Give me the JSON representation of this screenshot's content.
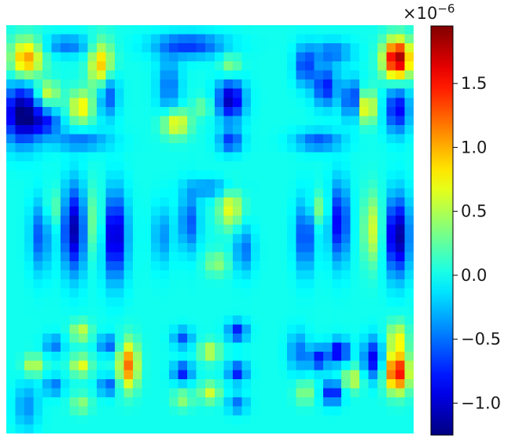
{
  "chart_data": {
    "type": "heatmap",
    "title": "",
    "xlabel": "",
    "ylabel": "",
    "colormap": "jet",
    "colorbar": {
      "scale_prefix": "×10",
      "scale_exponent": "−6",
      "vmin": -1.25,
      "vmax": 1.95,
      "ticks": [
        {
          "value": 1.5,
          "label": "1.5"
        },
        {
          "value": 1.0,
          "label": "1.0"
        },
        {
          "value": 0.5,
          "label": "0.5"
        },
        {
          "value": 0.0,
          "label": "0.0"
        },
        {
          "value": -0.5,
          "label": "−0.5"
        },
        {
          "value": -1.0,
          "label": "−1.0"
        }
      ]
    },
    "grid": {
      "rows": 3,
      "cols": 3
    },
    "background_value": 0.0,
    "panels": [
      {
        "row": 0,
        "col": 0,
        "blobs": [
          {
            "u": 0.15,
            "v": 0.25,
            "a": 1.1,
            "su": 0.08,
            "sv": 0.1
          },
          {
            "u": 0.7,
            "v": 0.3,
            "a": 1.0,
            "su": 0.06,
            "sv": 0.12
          },
          {
            "u": 0.3,
            "v": 0.5,
            "a": 0.7,
            "su": 0.06,
            "sv": 0.06
          },
          {
            "u": 0.12,
            "v": 0.65,
            "a": -1.3,
            "su": 0.1,
            "sv": 0.15
          },
          {
            "u": 0.3,
            "v": 0.72,
            "a": -0.6,
            "su": 0.08,
            "sv": 0.06
          },
          {
            "u": 0.55,
            "v": 0.6,
            "a": 0.8,
            "su": 0.06,
            "sv": 0.08
          },
          {
            "u": 0.75,
            "v": 0.5,
            "a": -0.7,
            "su": 0.05,
            "sv": 0.12
          },
          {
            "u": 0.45,
            "v": 0.15,
            "a": -0.5,
            "su": 0.12,
            "sv": 0.05
          },
          {
            "u": 0.55,
            "v": 0.85,
            "a": -0.5,
            "su": 0.15,
            "sv": 0.05
          }
        ]
      },
      {
        "row": 0,
        "col": 1,
        "blobs": [
          {
            "u": 0.35,
            "v": 0.15,
            "a": -0.7,
            "su": 0.18,
            "sv": 0.06
          },
          {
            "u": 0.2,
            "v": 0.45,
            "a": -0.5,
            "su": 0.06,
            "sv": 0.15
          },
          {
            "u": 0.25,
            "v": 0.72,
            "a": 0.8,
            "su": 0.07,
            "sv": 0.07
          },
          {
            "u": 0.65,
            "v": 0.55,
            "a": -1.1,
            "su": 0.07,
            "sv": 0.1
          },
          {
            "u": 0.65,
            "v": 0.85,
            "a": -0.7,
            "su": 0.06,
            "sv": 0.06
          },
          {
            "u": 0.65,
            "v": 0.3,
            "a": 0.4,
            "su": 0.05,
            "sv": 0.06
          },
          {
            "u": 0.45,
            "v": 0.6,
            "a": 0.3,
            "su": 0.05,
            "sv": 0.05
          }
        ]
      },
      {
        "row": 0,
        "col": 2,
        "blobs": [
          {
            "u": 0.88,
            "v": 0.25,
            "a": 1.9,
            "su": 0.07,
            "sv": 0.1
          },
          {
            "u": 0.88,
            "v": 0.62,
            "a": -0.9,
            "su": 0.06,
            "sv": 0.12
          },
          {
            "u": 0.65,
            "v": 0.6,
            "a": 0.9,
            "su": 0.05,
            "sv": 0.08
          },
          {
            "u": 0.55,
            "v": 0.55,
            "a": -0.8,
            "su": 0.05,
            "sv": 0.1
          },
          {
            "u": 0.2,
            "v": 0.3,
            "a": -0.7,
            "su": 0.05,
            "sv": 0.1
          },
          {
            "u": 0.35,
            "v": 0.45,
            "a": -0.8,
            "su": 0.06,
            "sv": 0.1
          },
          {
            "u": 0.4,
            "v": 0.2,
            "a": -0.5,
            "su": 0.1,
            "sv": 0.06
          },
          {
            "u": 0.3,
            "v": 0.85,
            "a": -0.6,
            "su": 0.12,
            "sv": 0.05
          }
        ]
      },
      {
        "row": 1,
        "col": 0,
        "blobs": [
          {
            "u": 0.5,
            "v": 0.5,
            "a": -1.1,
            "su": 0.06,
            "sv": 0.22
          },
          {
            "u": 0.8,
            "v": 0.55,
            "a": -1.1,
            "su": 0.06,
            "sv": 0.22
          },
          {
            "u": 0.25,
            "v": 0.55,
            "a": -0.6,
            "su": 0.05,
            "sv": 0.18
          },
          {
            "u": 0.65,
            "v": 0.45,
            "a": 0.4,
            "su": 0.05,
            "sv": 0.18
          },
          {
            "u": 0.35,
            "v": 0.35,
            "a": 0.3,
            "su": 0.05,
            "sv": 0.1
          }
        ]
      },
      {
        "row": 1,
        "col": 1,
        "blobs": [
          {
            "u": 0.65,
            "v": 0.35,
            "a": 0.7,
            "su": 0.06,
            "sv": 0.1
          },
          {
            "u": 0.35,
            "v": 0.45,
            "a": -0.6,
            "su": 0.05,
            "sv": 0.15
          },
          {
            "u": 0.75,
            "v": 0.65,
            "a": -0.5,
            "su": 0.05,
            "sv": 0.12
          },
          {
            "u": 0.15,
            "v": 0.55,
            "a": -0.4,
            "su": 0.05,
            "sv": 0.15
          },
          {
            "u": 0.5,
            "v": 0.2,
            "a": -0.4,
            "su": 0.12,
            "sv": 0.05
          },
          {
            "u": 0.55,
            "v": 0.75,
            "a": 0.4,
            "su": 0.06,
            "sv": 0.06
          }
        ]
      },
      {
        "row": 1,
        "col": 2,
        "blobs": [
          {
            "u": 0.88,
            "v": 0.55,
            "a": -1.2,
            "su": 0.06,
            "sv": 0.2
          },
          {
            "u": 0.7,
            "v": 0.5,
            "a": 0.6,
            "su": 0.05,
            "sv": 0.18
          },
          {
            "u": 0.45,
            "v": 0.45,
            "a": -0.9,
            "su": 0.05,
            "sv": 0.2
          },
          {
            "u": 0.2,
            "v": 0.55,
            "a": -0.7,
            "su": 0.05,
            "sv": 0.18
          },
          {
            "u": 0.3,
            "v": 0.35,
            "a": 0.4,
            "su": 0.05,
            "sv": 0.08
          }
        ]
      },
      {
        "row": 2,
        "col": 0,
        "blobs": [
          {
            "u": 0.35,
            "v": 0.35,
            "a": -0.5,
            "su": 0.05,
            "sv": 0.05
          },
          {
            "u": 0.55,
            "v": 0.25,
            "a": 0.6,
            "su": 0.05,
            "sv": 0.05
          },
          {
            "u": 0.75,
            "v": 0.35,
            "a": -0.6,
            "su": 0.05,
            "sv": 0.05
          },
          {
            "u": 0.2,
            "v": 0.5,
            "a": 0.6,
            "su": 0.05,
            "sv": 0.05
          },
          {
            "u": 0.55,
            "v": 0.5,
            "a": 0.7,
            "su": 0.05,
            "sv": 0.05
          },
          {
            "u": 0.35,
            "v": 0.65,
            "a": -0.5,
            "su": 0.05,
            "sv": 0.05
          },
          {
            "u": 0.75,
            "v": 0.65,
            "a": -0.6,
            "su": 0.05,
            "sv": 0.05
          },
          {
            "u": 0.9,
            "v": 0.5,
            "a": 1.2,
            "su": 0.05,
            "sv": 0.12
          },
          {
            "u": 0.55,
            "v": 0.78,
            "a": 0.4,
            "su": 0.05,
            "sv": 0.05
          },
          {
            "u": 0.15,
            "v": 0.8,
            "a": -0.4,
            "su": 0.06,
            "sv": 0.12
          }
        ]
      },
      {
        "row": 2,
        "col": 1,
        "blobs": [
          {
            "u": 0.3,
            "v": 0.3,
            "a": -0.6,
            "su": 0.05,
            "sv": 0.05
          },
          {
            "u": 0.7,
            "v": 0.25,
            "a": -0.8,
            "su": 0.05,
            "sv": 0.05
          },
          {
            "u": 0.5,
            "v": 0.4,
            "a": 0.6,
            "su": 0.05,
            "sv": 0.05
          },
          {
            "u": 0.3,
            "v": 0.55,
            "a": -0.8,
            "su": 0.05,
            "sv": 0.05
          },
          {
            "u": 0.7,
            "v": 0.55,
            "a": -0.8,
            "su": 0.05,
            "sv": 0.05
          },
          {
            "u": 0.5,
            "v": 0.7,
            "a": 0.6,
            "su": 0.05,
            "sv": 0.05
          },
          {
            "u": 0.3,
            "v": 0.75,
            "a": 0.4,
            "su": 0.05,
            "sv": 0.05
          },
          {
            "u": 0.7,
            "v": 0.78,
            "a": -0.5,
            "su": 0.05,
            "sv": 0.05
          }
        ]
      },
      {
        "row": 2,
        "col": 2,
        "blobs": [
          {
            "u": 0.88,
            "v": 0.55,
            "a": 1.6,
            "su": 0.06,
            "sv": 0.1
          },
          {
            "u": 0.88,
            "v": 0.3,
            "a": 0.7,
            "su": 0.05,
            "sv": 0.08
          },
          {
            "u": 0.7,
            "v": 0.45,
            "a": -0.9,
            "su": 0.05,
            "sv": 0.1
          },
          {
            "u": 0.45,
            "v": 0.4,
            "a": -1.0,
            "su": 0.05,
            "sv": 0.06
          },
          {
            "u": 0.3,
            "v": 0.45,
            "a": -0.8,
            "su": 0.05,
            "sv": 0.06
          },
          {
            "u": 0.4,
            "v": 0.7,
            "a": -0.9,
            "su": 0.05,
            "sv": 0.06
          },
          {
            "u": 0.55,
            "v": 0.6,
            "a": 0.6,
            "su": 0.05,
            "sv": 0.06
          },
          {
            "u": 0.2,
            "v": 0.7,
            "a": 0.4,
            "su": 0.05,
            "sv": 0.06
          },
          {
            "u": 0.15,
            "v": 0.4,
            "a": -0.5,
            "su": 0.05,
            "sv": 0.1
          }
        ]
      }
    ]
  }
}
